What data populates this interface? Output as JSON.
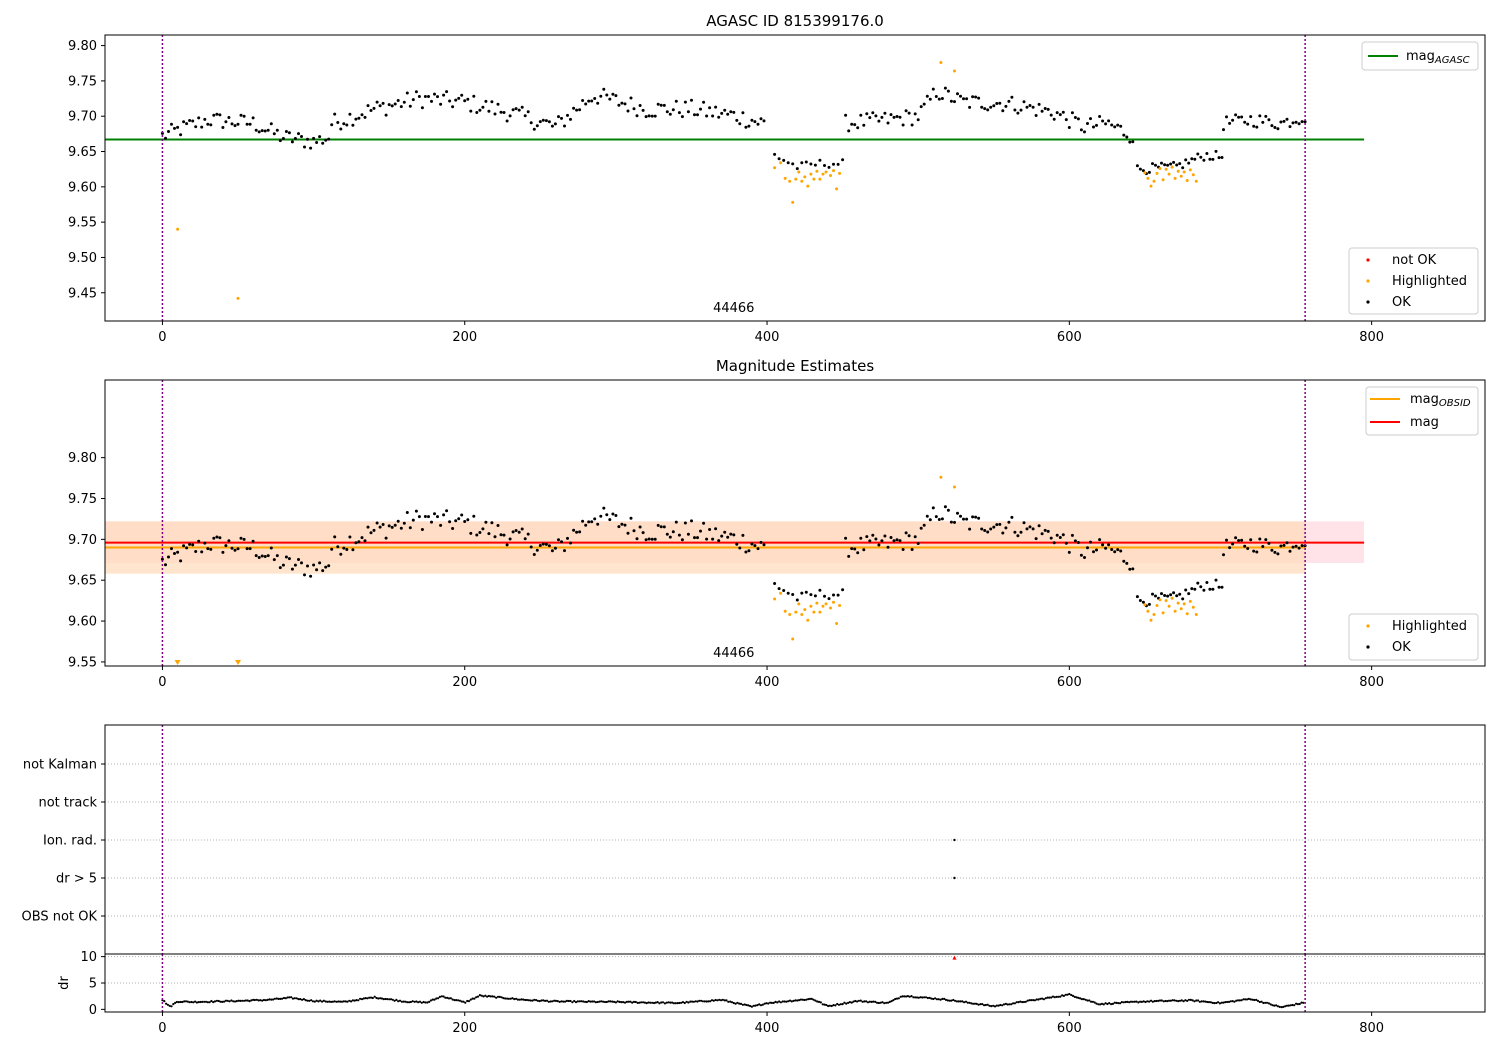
{
  "figure": {
    "colors": {
      "ok": "#000000",
      "highlighted": "#ffa500",
      "not_ok": "#ff0000",
      "agasc_line": "#008000",
      "mag_line": "#ff0000",
      "obsid_line": "#ffa500",
      "obs_boundary": "#800080",
      "band_mag": "#ffc0cb",
      "band_obsid": "#ffdab9"
    }
  },
  "chart_data": [
    {
      "type": "scatter",
      "title": "AGASC ID 815399176.0",
      "xlim": [
        -38,
        875
      ],
      "ylim": [
        9.41,
        9.815
      ],
      "xticks": [
        "0",
        "200",
        "400",
        "600",
        "800"
      ],
      "yticks": [
        "9.45",
        "9.50",
        "9.55",
        "9.60",
        "9.65",
        "9.70",
        "9.75",
        "9.80"
      ],
      "obsid_label": "44466",
      "obsid_boundaries": [
        0,
        756
      ],
      "lines": [
        {
          "name": "mag$_{AGASC}$",
          "label_main": "mag",
          "label_sub": "AGASC",
          "y": 9.667,
          "x": [
            -38,
            795
          ],
          "color": "#008000"
        }
      ],
      "series_legend": [
        {
          "name": "not OK",
          "color": "#ff0000"
        },
        {
          "name": "Highlighted",
          "color": "#ffa500"
        },
        {
          "name": "OK",
          "color": "#000000"
        }
      ],
      "highlighted_points": [
        [
          10,
          9.54
        ],
        [
          50,
          9.442
        ],
        [
          405,
          9.627
        ],
        [
          409,
          9.634
        ],
        [
          412,
          9.612
        ],
        [
          415,
          9.608
        ],
        [
          417,
          9.578
        ],
        [
          419,
          9.611
        ],
        [
          421,
          9.621
        ],
        [
          423,
          9.608
        ],
        [
          425,
          9.614
        ],
        [
          427,
          9.601
        ],
        [
          429,
          9.618
        ],
        [
          431,
          9.611
        ],
        [
          433,
          9.622
        ],
        [
          435,
          9.611
        ],
        [
          437,
          9.618
        ],
        [
          439,
          9.621
        ],
        [
          442,
          9.616
        ],
        [
          444,
          9.623
        ],
        [
          446,
          9.597
        ],
        [
          448,
          9.619
        ],
        [
          515,
          9.776
        ],
        [
          524,
          9.764
        ],
        [
          650,
          9.62
        ],
        [
          652,
          9.612
        ],
        [
          654,
          9.601
        ],
        [
          656,
          9.608
        ],
        [
          658,
          9.619
        ],
        [
          660,
          9.626
        ],
        [
          662,
          9.61
        ],
        [
          664,
          9.625
        ],
        [
          666,
          9.618
        ],
        [
          668,
          9.628
        ],
        [
          670,
          9.612
        ],
        [
          672,
          9.622
        ],
        [
          674,
          9.615
        ],
        [
          676,
          9.621
        ],
        [
          678,
          9.609
        ],
        [
          680,
          9.624
        ],
        [
          682,
          9.617
        ],
        [
          684,
          9.608
        ]
      ],
      "ok_segments": [
        {
          "x0": 0,
          "x1": 110,
          "step": 2,
          "knots": [
            [
              0,
              9.672
            ],
            [
              10,
              9.68
            ],
            [
              30,
              9.695
            ],
            [
              60,
              9.69
            ],
            [
              80,
              9.67
            ],
            [
              100,
              9.664
            ],
            [
              110,
              9.67
            ]
          ],
          "noise": 0.012
        },
        {
          "x0": 112,
          "x1": 398,
          "step": 2,
          "knots": [
            [
              112,
              9.69
            ],
            [
              140,
              9.71
            ],
            [
              170,
              9.725
            ],
            [
              200,
              9.72
            ],
            [
              230,
              9.705
            ],
            [
              260,
              9.685
            ],
            [
              285,
              9.73
            ],
            [
              320,
              9.71
            ],
            [
              350,
              9.71
            ],
            [
              380,
              9.7
            ],
            [
              398,
              9.69
            ]
          ],
          "noise": 0.013
        },
        {
          "x0": 405,
          "x1": 450,
          "step": 3,
          "knots": [
            [
              405,
              9.645
            ],
            [
              420,
              9.628
            ],
            [
              435,
              9.633
            ],
            [
              450,
              9.633
            ]
          ],
          "noise": 0.006
        },
        {
          "x0": 452,
          "x1": 642,
          "step": 2,
          "knots": [
            [
              452,
              9.69
            ],
            [
              480,
              9.695
            ],
            [
              500,
              9.7
            ],
            [
              512,
              9.735
            ],
            [
              530,
              9.72
            ],
            [
              560,
              9.718
            ],
            [
              590,
              9.705
            ],
            [
              610,
              9.685
            ],
            [
              625,
              9.69
            ],
            [
              642,
              9.672
            ]
          ],
          "noise": 0.012
        },
        {
          "x0": 645,
          "x1": 702,
          "step": 2,
          "knots": [
            [
              645,
              9.625
            ],
            [
              670,
              9.628
            ],
            [
              690,
              9.645
            ],
            [
              702,
              9.642
            ]
          ],
          "noise": 0.007
        },
        {
          "x0": 702,
          "x1": 756,
          "step": 2,
          "knots": [
            [
              702,
              9.69
            ],
            [
              720,
              9.695
            ],
            [
              740,
              9.69
            ],
            [
              756,
              9.7
            ]
          ],
          "noise": 0.01
        }
      ]
    },
    {
      "type": "scatter",
      "title": "Magnitude Estimates",
      "xlim": [
        -38,
        875
      ],
      "ylim": [
        9.545,
        9.895
      ],
      "xticks": [
        "0",
        "200",
        "400",
        "600",
        "800"
      ],
      "yticks": [
        "9.55",
        "9.60",
        "9.65",
        "9.70",
        "9.75",
        "9.80"
      ],
      "obsid_label": "44466",
      "obsid_boundaries": [
        0,
        756
      ],
      "bands": [
        {
          "y0": 9.671,
          "y1": 9.722,
          "x": [
            -38,
            795
          ],
          "color": "#ffc0cb",
          "opacity": 0.45
        },
        {
          "y0": 9.658,
          "y1": 9.722,
          "x": [
            -38,
            756
          ],
          "color": "#ffdab9",
          "opacity": 0.7
        }
      ],
      "lines": [
        {
          "name": "mag$_{OBSID}$",
          "label_main": "mag",
          "label_sub": "OBSID",
          "y": 9.69,
          "x": [
            -38,
            756
          ],
          "color": "#ffa500"
        },
        {
          "name": "mag",
          "label_main": "mag",
          "label_sub": "",
          "y": 9.696,
          "x": [
            -38,
            795
          ],
          "color": "#ff0000"
        }
      ],
      "series_legend": [
        {
          "name": "Highlighted",
          "color": "#ffa500"
        },
        {
          "name": "OK",
          "color": "#000000"
        }
      ],
      "clipped_markers": [
        10,
        50
      ],
      "uses_points_from_panel": 0
    },
    {
      "type": "scatter",
      "title": "",
      "xlim": [
        -38,
        875
      ],
      "categories": [
        "not Kalman",
        "not track",
        "Ion. rad.",
        "dr > 5",
        "OBS not OK"
      ],
      "flag_points": [
        {
          "category": "Ion. rad.",
          "x": 524
        },
        {
          "category": "dr > 5",
          "x": 524
        }
      ],
      "obsid_boundaries": [
        0,
        756
      ]
    },
    {
      "type": "scatter",
      "title": "",
      "ylabel": "dr",
      "xlim": [
        -38,
        875
      ],
      "ylim": [
        -0.5,
        10.5
      ],
      "xticks": [
        "0",
        "200",
        "400",
        "600",
        "800"
      ],
      "yticks": [
        "0",
        "5",
        "10"
      ],
      "obsid_boundaries": [
        0,
        756
      ],
      "clipped_marker": {
        "x": 524,
        "color": "#ff0000"
      },
      "dr_knots": [
        [
          0,
          1.8
        ],
        [
          5,
          0.5
        ],
        [
          10,
          1.5
        ],
        [
          20,
          1.4
        ],
        [
          50,
          1.6
        ],
        [
          70,
          1.8
        ],
        [
          85,
          2.2
        ],
        [
          100,
          1.6
        ],
        [
          120,
          1.4
        ],
        [
          140,
          2.3
        ],
        [
          160,
          1.5
        ],
        [
          175,
          1.3
        ],
        [
          185,
          2.5
        ],
        [
          200,
          1.3
        ],
        [
          210,
          2.6
        ],
        [
          240,
          1.8
        ],
        [
          260,
          1.5
        ],
        [
          300,
          1.4
        ],
        [
          340,
          1.2
        ],
        [
          370,
          1.8
        ],
        [
          390,
          0.5
        ],
        [
          400,
          1.2
        ],
        [
          430,
          2.0
        ],
        [
          440,
          0.6
        ],
        [
          460,
          1.6
        ],
        [
          480,
          1.2
        ],
        [
          490,
          2.6
        ],
        [
          520,
          1.8
        ],
        [
          550,
          0.6
        ],
        [
          580,
          1.9
        ],
        [
          600,
          2.8
        ],
        [
          620,
          1.0
        ],
        [
          650,
          1.5
        ],
        [
          680,
          1.7
        ],
        [
          700,
          1.2
        ],
        [
          720,
          2.0
        ],
        [
          740,
          0.4
        ],
        [
          756,
          1.3
        ]
      ]
    }
  ]
}
